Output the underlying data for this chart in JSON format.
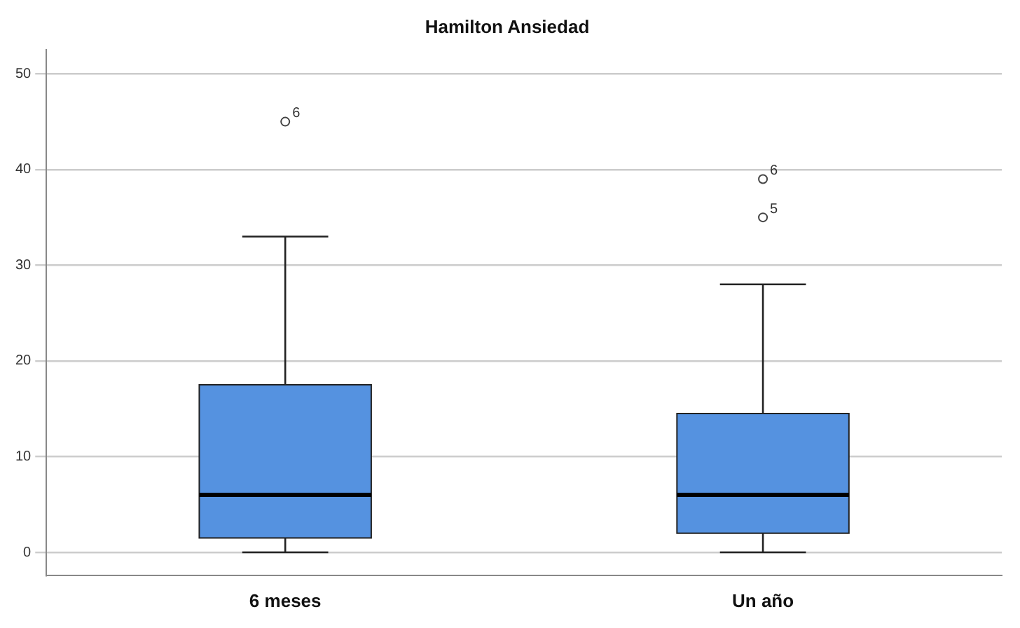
{
  "chart_data": {
    "type": "box",
    "title": "Hamilton Ansiedad",
    "categories": [
      "6 meses",
      "Un año"
    ],
    "boxes": [
      {
        "low": 0,
        "q1": 1.5,
        "median": 6,
        "q3": 17.5,
        "high": 33,
        "outliers": [
          45
        ]
      },
      {
        "low": 0,
        "q1": 2,
        "median": 6,
        "q3": 14.5,
        "high": 28,
        "outliers": [
          39,
          35
        ]
      }
    ],
    "color": "#5592e0",
    "ylim": [
      -2.4,
      52.5
    ],
    "yticks": [
      0,
      10,
      20,
      30,
      40,
      50
    ],
    "grid": "y",
    "marker": "circle",
    "annotations": [
      "6",
      "6",
      "5"
    ]
  }
}
